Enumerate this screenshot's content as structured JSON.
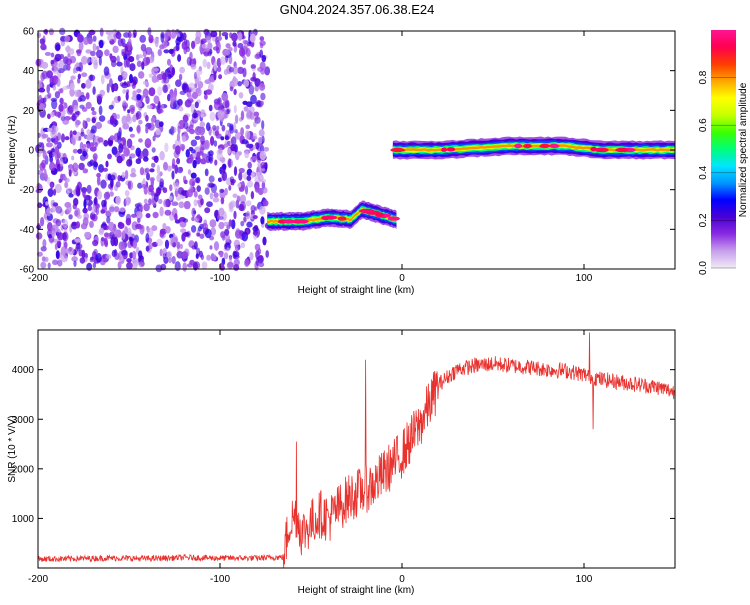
{
  "title": "GN04.2024.357.06.38.E24",
  "chart_data": [
    {
      "type": "heatmap",
      "xlabel": "Height of straight line (km)",
      "ylabel": "Frequency (Hz)",
      "xlim": [
        -200,
        150
      ],
      "ylim": [
        -60,
        60
      ],
      "x_ticks": [
        -200,
        -100,
        0,
        100
      ],
      "y_ticks": [
        -60,
        -40,
        -20,
        0,
        20,
        40,
        60
      ],
      "noise_region": {
        "x_range": [
          -200,
          -74
        ],
        "y_range": [
          -60,
          60
        ],
        "amplitude_range": [
          0.05,
          0.25
        ]
      },
      "signal_segments": [
        {
          "x_range": [
            -74,
            -3
          ],
          "frequency": [
            -36,
            -36,
            -34,
            -35,
            -30,
            -35
          ],
          "at_x": [
            -74,
            -55,
            -40,
            -28,
            -22,
            -3
          ],
          "peak_amplitude": 1.0
        },
        {
          "x_range": [
            -5,
            150
          ],
          "frequency": [
            0,
            0,
            2,
            2,
            0,
            0
          ],
          "at_x": [
            -5,
            20,
            60,
            90,
            110,
            150
          ],
          "peak_amplitude": 1.0
        }
      ],
      "colorbar": {
        "label": "Normalized spectral amplitude",
        "ticks": [
          0.0,
          0.2,
          0.4,
          0.6,
          0.8
        ],
        "range": [
          0,
          1
        ],
        "colors": [
          "#f2eaf6",
          "#c8a0ec",
          "#8a2be2",
          "#4b00d6",
          "#0000ff",
          "#0096ff",
          "#00e5ff",
          "#00ff78",
          "#3cff00",
          "#c8ff00",
          "#ffff00",
          "#ffa500",
          "#ff3c00",
          "#ff0050",
          "#ff1493"
        ]
      }
    },
    {
      "type": "line",
      "xlabel": "Height of straight line (km)",
      "ylabel": "SNR (10 * V/V)",
      "xlim": [
        -200,
        150
      ],
      "ylim": [
        0,
        4800
      ],
      "x_ticks": [
        -200,
        -100,
        0,
        100
      ],
      "y_ticks": [
        1000,
        2000,
        3000,
        4000
      ],
      "color": "#e8322e",
      "series": [
        {
          "x": [
            -200,
            -180,
            -160,
            -140,
            -120,
            -100,
            -80,
            -65,
            -62,
            -58,
            -55,
            -50,
            -45,
            -40,
            -35,
            -30,
            -25,
            -20,
            -15,
            -10,
            -5,
            0,
            5,
            10,
            15,
            20,
            30,
            40,
            50,
            60,
            70,
            80,
            90,
            100,
            110,
            120,
            130,
            140,
            150
          ],
          "values": [
            180,
            190,
            200,
            190,
            210,
            200,
            200,
            220,
            900,
            1100,
            700,
            900,
            1100,
            1000,
            1200,
            1400,
            1500,
            1600,
            1700,
            1900,
            2100,
            2300,
            2600,
            2900,
            3300,
            3700,
            4000,
            4080,
            4120,
            4080,
            4050,
            4000,
            3980,
            3900,
            3800,
            3750,
            3700,
            3650,
            3550
          ]
        }
      ],
      "spikes": [
        {
          "x": -58,
          "value": 2550
        },
        {
          "x": -20,
          "value": 4200
        },
        {
          "x": 103,
          "value": 4750
        },
        {
          "x": 105,
          "value": 2800
        }
      ]
    }
  ]
}
